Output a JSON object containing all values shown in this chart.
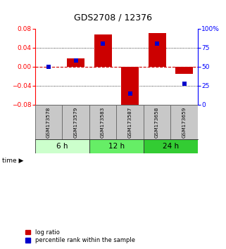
{
  "title": "GDS2708 / 12376",
  "samples": [
    "GSM173578",
    "GSM173579",
    "GSM173583",
    "GSM173587",
    "GSM173658",
    "GSM173659"
  ],
  "log_ratios": [
    0.0,
    0.018,
    0.068,
    -0.088,
    0.07,
    -0.015
  ],
  "percentile_ranks": [
    50,
    58,
    80,
    15,
    80,
    28
  ],
  "time_groups": [
    {
      "label": "6 h",
      "columns": [
        0,
        1
      ],
      "color": "#ccffcc"
    },
    {
      "label": "12 h",
      "columns": [
        2,
        3
      ],
      "color": "#66ee66"
    },
    {
      "label": "24 h",
      "columns": [
        4,
        5
      ],
      "color": "#33cc33"
    }
  ],
  "bar_color": "#cc0000",
  "dot_color": "#0000cc",
  "ylim_left": [
    -0.08,
    0.08
  ],
  "ylim_right": [
    0,
    100
  ],
  "yticks_left": [
    -0.08,
    -0.04,
    0,
    0.04,
    0.08
  ],
  "yticks_right": [
    0,
    25,
    50,
    75,
    100
  ],
  "zero_line_color": "#cc0000",
  "grid_dotted_color": "#000000",
  "bar_width": 0.65,
  "dot_size": 22,
  "legend_labels": [
    "log ratio",
    "percentile rank within the sample"
  ]
}
